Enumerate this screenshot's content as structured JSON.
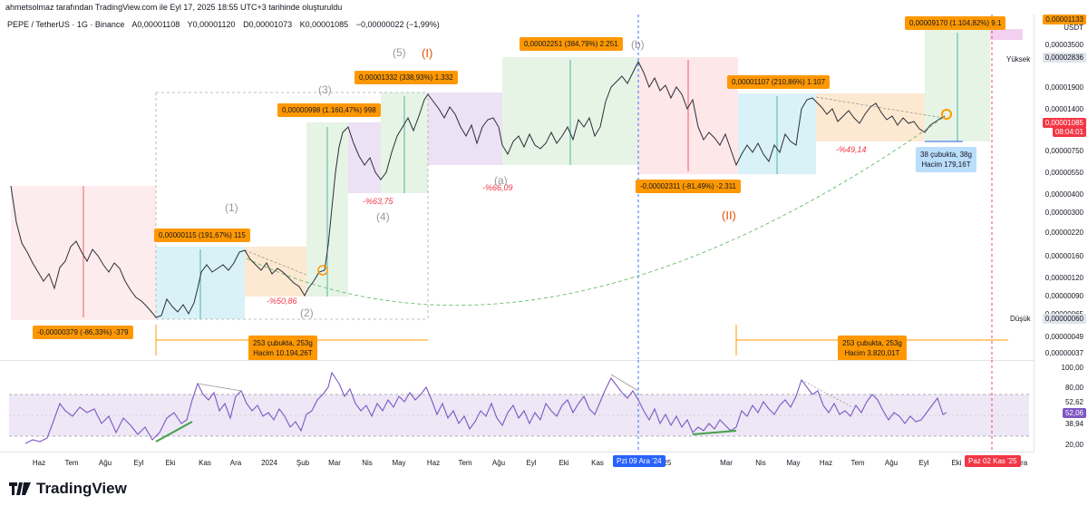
{
  "header": {
    "attribution": "ahmetsolmaz tarafından TradingView.com ile Eyl 17, 2025 18:55 UTC+3 tarihinde oluşturuldu",
    "symbol": "PEPE / TetherUS · 1G · Binance",
    "open": "A0,00001108",
    "high": "Y0,00001120",
    "low": "D0,00001073",
    "close": "K0,00001085",
    "change": "−0,00000022 (−1,99%)"
  },
  "price_axis": {
    "currency": "USDT",
    "labels": [
      "0,00003500",
      "0,00002836",
      "0,00001900",
      "0,00001400",
      "0,00001085",
      "0,00000750",
      "0,00000550",
      "0,00000400",
      "0,00000300",
      "0,00000220",
      "0,00000160",
      "0,00000120",
      "0,00000090",
      "0,00000065",
      "0,00000060",
      "0,00000049",
      "0,00000037"
    ],
    "last_price": "0,00001085",
    "countdown": "08:04:01",
    "high_tag": "Yüksek",
    "high_value": "0,00002836",
    "low_tag": "Düşük",
    "low_value": "0,00000060",
    "top_value": "0,00001133"
  },
  "rsi_axis": {
    "labels": [
      "100,00",
      "80,00",
      "52,62",
      "52,06",
      "38,94",
      "20,00"
    ],
    "current": "52,06"
  },
  "time_axis": {
    "labels": [
      "Haz",
      "Tem",
      "Ağu",
      "Eyl",
      "Eki",
      "Kas",
      "Ara",
      "2024",
      "Şub",
      "Mar",
      "Nis",
      "May",
      "Haz",
      "Tem",
      "Ağu",
      "Eyl",
      "Eki",
      "Kas",
      "25",
      "Mar",
      "Nis",
      "May",
      "Haz",
      "Tem",
      "Ağu",
      "Eyl",
      "Eki",
      "Ara"
    ],
    "crosshair_date": "Pzt 09 Ara '24",
    "end_date": "Paz 02 Kas '25"
  },
  "annotations": {
    "box1": "-0,00000379 (-86,33%) -379",
    "box2": "0,00000115 (191,67%) 115",
    "box3": "0,00000998 (1.160,47%) 998",
    "box4": "0,00001332 (338,93%) 1.332",
    "box5": "0,00002251 (384,79%) 2.251",
    "box6": "-0,00002311 (-81,49%) -2.311",
    "box7": "0,00001107 (210,86%) 1.107",
    "box8": "0,00009170 (1.104,82%) 9.1",
    "red1": "-%50,86",
    "red2": "-%63,75",
    "red3": "-%66,09",
    "red4": "-%49,14",
    "range1_line1": "253 çubukta, 253g",
    "range1_line2": "Hacim 10.194,26T",
    "range2_line1": "253 çubukta, 253g",
    "range2_line2": "Hacim 3.820,01T",
    "range3_line1": "38 çubukta, 38g",
    "range3_line2": "Hacim 179,16T",
    "wave1": "(1)",
    "wave2": "(2)",
    "wave3": "(3)",
    "wave4": "(4)",
    "wave5": "(5)",
    "waveI": "(I)",
    "waveII": "(II)",
    "wavea": "(a)",
    "waveb": "(b)"
  },
  "footer": {
    "brand": "TradingView"
  },
  "colors": {
    "accent": "#ff9800",
    "up": "#089981",
    "down": "#f23645",
    "rsi_line": "#7e57c2",
    "crosshair": "#2962ff"
  }
}
